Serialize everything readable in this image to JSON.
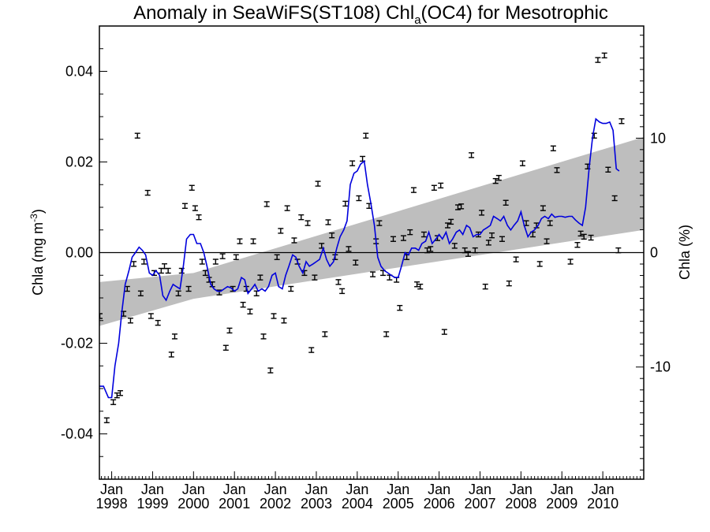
{
  "chart_data": {
    "type": "scatter",
    "title": "Anomaly in SeaWiFS(ST108) Chl",
    "title_subscript": "a",
    "title_suffix": "(OC4) for Mesotrophic",
    "ylabel_left": "Chla (mg m",
    "ylabel_left_sup": "-3",
    "ylabel_left_tail": ")",
    "ylabel_right": "Chla (%)",
    "xlim": [
      1997.7,
      2011.0
    ],
    "ylim": [
      -0.05,
      0.05
    ],
    "y_ticks": [
      "-0.04",
      "-0.02",
      "0.00",
      "0.02",
      "0.04"
    ],
    "y_tick_values": [
      -0.04,
      -0.02,
      0.0,
      0.02,
      0.04
    ],
    "right_ticks": [
      "-10",
      "0",
      "10"
    ],
    "right_tick_values": [
      -0.02525,
      0.0,
      0.02525
    ],
    "x_month": "Jan",
    "x_years": [
      "1998",
      "1999",
      "2000",
      "2001",
      "2002",
      "2003",
      "2004",
      "2005",
      "2006",
      "2007",
      "2008",
      "2009",
      "2010"
    ],
    "x_year_values": [
      1998,
      1999,
      2000,
      2001,
      2002,
      2003,
      2004,
      2005,
      2006,
      2007,
      2008,
      2009,
      2010
    ],
    "zero_line": 0.0,
    "colors": {
      "points": "#000000",
      "line": "#0000dd",
      "band": "#bebebe",
      "axis": "#000000"
    },
    "band": {
      "x": [
        1997.7,
        2000.0,
        2011.0
      ],
      "upper": [
        -0.0065,
        -0.0045,
        0.0255
      ],
      "lower": [
        -0.0162,
        -0.0102,
        0.005
      ]
    },
    "points": [
      [
        1997.71,
        -0.014
      ],
      [
        1997.88,
        -0.037
      ],
      [
        1998.04,
        -0.033
      ],
      [
        1998.13,
        -0.0315
      ],
      [
        1998.21,
        -0.031
      ],
      [
        1998.29,
        -0.0135
      ],
      [
        1998.38,
        -0.008
      ],
      [
        1998.46,
        -0.015
      ],
      [
        1998.54,
        -0.0025
      ],
      [
        1998.63,
        0.0258
      ],
      [
        1998.71,
        -0.009
      ],
      [
        1998.79,
        -0.002
      ],
      [
        1998.88,
        0.0132
      ],
      [
        1998.96,
        -0.014
      ],
      [
        1999.04,
        -0.0045
      ],
      [
        1999.13,
        -0.0155
      ],
      [
        1999.21,
        -0.004
      ],
      [
        1999.29,
        -0.003
      ],
      [
        1999.38,
        -0.004
      ],
      [
        1999.46,
        -0.0225
      ],
      [
        1999.54,
        -0.0185
      ],
      [
        1999.63,
        -0.009
      ],
      [
        1999.71,
        -0.004
      ],
      [
        1999.79,
        0.0103
      ],
      [
        1999.88,
        -0.008
      ],
      [
        1999.96,
        0.0143
      ],
      [
        2000.04,
        0.0098
      ],
      [
        2000.13,
        0.0078
      ],
      [
        2000.21,
        -0.002
      ],
      [
        2000.29,
        -0.0045
      ],
      [
        2000.38,
        -0.006
      ],
      [
        2000.46,
        -0.007
      ],
      [
        2000.54,
        -0.002
      ],
      [
        2000.63,
        -0.0088
      ],
      [
        2000.71,
        -0.0008
      ],
      [
        2000.79,
        -0.021
      ],
      [
        2000.88,
        -0.0172
      ],
      [
        2000.96,
        -0.008
      ],
      [
        2001.04,
        -0.001
      ],
      [
        2001.13,
        0.0025
      ],
      [
        2001.21,
        -0.0115
      ],
      [
        2001.29,
        -0.008
      ],
      [
        2001.38,
        -0.013
      ],
      [
        2001.46,
        0.0025
      ],
      [
        2001.54,
        -0.009
      ],
      [
        2001.63,
        -0.0055
      ],
      [
        2001.71,
        -0.0185
      ],
      [
        2001.79,
        0.0107
      ],
      [
        2001.88,
        -0.026
      ],
      [
        2001.96,
        -0.014
      ],
      [
        2002.04,
        -0.001
      ],
      [
        2002.13,
        0.0048
      ],
      [
        2002.21,
        -0.015
      ],
      [
        2002.29,
        0.0098
      ],
      [
        2002.38,
        -0.008
      ],
      [
        2002.46,
        0.0027
      ],
      [
        2002.54,
        -0.002
      ],
      [
        2002.63,
        0.0078
      ],
      [
        2002.71,
        -0.0045
      ],
      [
        2002.79,
        0.0065
      ],
      [
        2002.88,
        -0.0215
      ],
      [
        2002.96,
        -0.0055
      ],
      [
        2003.04,
        0.0152
      ],
      [
        2003.13,
        0.0015
      ],
      [
        2003.21,
        -0.018
      ],
      [
        2003.29,
        0.0067
      ],
      [
        2003.38,
        0.0038
      ],
      [
        2003.46,
        -0.001
      ],
      [
        2003.54,
        -0.0065
      ],
      [
        2003.63,
        -0.0085
      ],
      [
        2003.71,
        0.0108
      ],
      [
        2003.79,
        0.0008
      ],
      [
        2003.88,
        0.0197
      ],
      [
        2003.96,
        -0.0022
      ],
      [
        2004.04,
        0.012
      ],
      [
        2004.13,
        0.0207
      ],
      [
        2004.21,
        0.0258
      ],
      [
        2004.29,
        0.0103
      ],
      [
        2004.38,
        -0.0048
      ],
      [
        2004.46,
        0.0025
      ],
      [
        2004.54,
        0.0065
      ],
      [
        2004.63,
        -0.0045
      ],
      [
        2004.71,
        -0.018
      ],
      [
        2004.79,
        -0.0055
      ],
      [
        2004.88,
        0.003
      ],
      [
        2004.96,
        -0.006
      ],
      [
        2005.04,
        -0.0122
      ],
      [
        2005.13,
        0.0032
      ],
      [
        2005.21,
        -0.001
      ],
      [
        2005.29,
        0.0045
      ],
      [
        2005.38,
        0.0138
      ],
      [
        2005.46,
        -0.007
      ],
      [
        2005.54,
        -0.0075
      ],
      [
        2005.63,
        0.004
      ],
      [
        2005.71,
        0.0005
      ],
      [
        2005.79,
        0.0008
      ],
      [
        2005.88,
        0.0143
      ],
      [
        2005.96,
        0.0032
      ],
      [
        2006.04,
        0.0148
      ],
      [
        2006.13,
        -0.0175
      ],
      [
        2006.21,
        0.006
      ],
      [
        2006.29,
        0.0068
      ],
      [
        2006.38,
        0.0015
      ],
      [
        2006.46,
        0.01
      ],
      [
        2006.54,
        0.0102
      ],
      [
        2006.63,
        0.0005
      ],
      [
        2006.71,
        -0.0003
      ],
      [
        2006.79,
        0.0215
      ],
      [
        2006.88,
        0.0005
      ],
      [
        2006.96,
        0.004
      ],
      [
        2007.04,
        0.0088
      ],
      [
        2007.13,
        -0.0075
      ],
      [
        2007.21,
        0.0022
      ],
      [
        2007.29,
        0.0038
      ],
      [
        2007.38,
        0.0158
      ],
      [
        2007.46,
        0.0165
      ],
      [
        2007.54,
        0.003
      ],
      [
        2007.63,
        0.011
      ],
      [
        2007.71,
        -0.0068
      ],
      [
        2007.88,
        -0.0015
      ],
      [
        2008.04,
        0.0197
      ],
      [
        2008.13,
        0.0065
      ],
      [
        2008.29,
        0.004
      ],
      [
        2008.38,
        0.006
      ],
      [
        2008.46,
        -0.0025
      ],
      [
        2008.54,
        0.0098
      ],
      [
        2008.63,
        0.0025
      ],
      [
        2008.71,
        0.0065
      ],
      [
        2008.79,
        0.023
      ],
      [
        2008.88,
        0.0182
      ],
      [
        2009.21,
        -0.002
      ],
      [
        2009.38,
        0.0017
      ],
      [
        2009.46,
        0.0042
      ],
      [
        2009.54,
        0.0035
      ],
      [
        2009.63,
        0.019
      ],
      [
        2009.71,
        0.0033
      ],
      [
        2009.79,
        0.0258
      ],
      [
        2009.88,
        0.0425
      ],
      [
        2010.04,
        0.0435
      ],
      [
        2010.13,
        0.0183
      ],
      [
        2010.29,
        0.012
      ],
      [
        2010.38,
        0.0005
      ],
      [
        2010.46,
        0.029
      ]
    ],
    "line": [
      [
        1997.7,
        -0.0295
      ],
      [
        1997.8,
        -0.0295
      ],
      [
        1997.92,
        -0.032
      ],
      [
        1998.0,
        -0.032
      ],
      [
        1998.08,
        -0.025
      ],
      [
        1998.17,
        -0.02
      ],
      [
        1998.25,
        -0.013
      ],
      [
        1998.33,
        -0.007
      ],
      [
        1998.42,
        -0.004
      ],
      [
        1998.5,
        -0.001
      ],
      [
        1998.58,
        0.0
      ],
      [
        1998.67,
        0.0012
      ],
      [
        1998.75,
        0.0005
      ],
      [
        1998.83,
        -0.0005
      ],
      [
        1998.92,
        -0.0045
      ],
      [
        1999.0,
        -0.005
      ],
      [
        1999.08,
        -0.004
      ],
      [
        1999.17,
        -0.005
      ],
      [
        1999.25,
        -0.0095
      ],
      [
        1999.33,
        -0.0105
      ],
      [
        1999.42,
        -0.0085
      ],
      [
        1999.5,
        -0.007
      ],
      [
        1999.58,
        -0.0075
      ],
      [
        1999.67,
        -0.008
      ],
      [
        1999.75,
        -0.003
      ],
      [
        1999.83,
        0.003
      ],
      [
        1999.92,
        0.004
      ],
      [
        2000.0,
        0.004
      ],
      [
        2000.08,
        0.002
      ],
      [
        2000.17,
        0.002
      ],
      [
        2000.25,
        0.0
      ],
      [
        2000.33,
        -0.003
      ],
      [
        2000.42,
        -0.007
      ],
      [
        2000.5,
        -0.008
      ],
      [
        2000.58,
        -0.0085
      ],
      [
        2000.67,
        -0.0085
      ],
      [
        2000.75,
        -0.008
      ],
      [
        2000.83,
        -0.0075
      ],
      [
        2000.92,
        -0.0078
      ],
      [
        2001.0,
        -0.0085
      ],
      [
        2001.08,
        -0.008
      ],
      [
        2001.17,
        -0.0055
      ],
      [
        2001.25,
        -0.006
      ],
      [
        2001.33,
        -0.009
      ],
      [
        2001.42,
        -0.008
      ],
      [
        2001.5,
        -0.007
      ],
      [
        2001.58,
        -0.0085
      ],
      [
        2001.67,
        -0.008
      ],
      [
        2001.75,
        -0.0085
      ],
      [
        2001.83,
        -0.0075
      ],
      [
        2001.92,
        -0.005
      ],
      [
        2002.0,
        -0.0045
      ],
      [
        2002.08,
        -0.0075
      ],
      [
        2002.17,
        -0.008
      ],
      [
        2002.25,
        -0.005
      ],
      [
        2002.33,
        -0.003
      ],
      [
        2002.42,
        -0.0005
      ],
      [
        2002.5,
        -0.001
      ],
      [
        2002.58,
        -0.003
      ],
      [
        2002.67,
        -0.0045
      ],
      [
        2002.75,
        -0.002
      ],
      [
        2002.83,
        -0.003
      ],
      [
        2002.92,
        -0.0025
      ],
      [
        2003.0,
        -0.002
      ],
      [
        2003.08,
        -0.0015
      ],
      [
        2003.17,
        0.001
      ],
      [
        2003.25,
        -0.0015
      ],
      [
        2003.33,
        -0.003
      ],
      [
        2003.42,
        -0.002
      ],
      [
        2003.5,
        0.001
      ],
      [
        2003.58,
        0.0035
      ],
      [
        2003.67,
        0.005
      ],
      [
        2003.75,
        0.007
      ],
      [
        2003.83,
        0.015
      ],
      [
        2003.92,
        0.0175
      ],
      [
        2004.0,
        0.018
      ],
      [
        2004.08,
        0.0195
      ],
      [
        2004.17,
        0.0202
      ],
      [
        2004.25,
        0.015
      ],
      [
        2004.33,
        0.011
      ],
      [
        2004.42,
        0.006
      ],
      [
        2004.5,
        -0.001
      ],
      [
        2004.58,
        -0.003
      ],
      [
        2004.67,
        -0.004
      ],
      [
        2004.75,
        -0.0045
      ],
      [
        2004.83,
        -0.005
      ],
      [
        2004.92,
        -0.0055
      ],
      [
        2005.0,
        -0.0055
      ],
      [
        2005.08,
        -0.003
      ],
      [
        2005.17,
        0.0
      ],
      [
        2005.25,
        -0.0005
      ],
      [
        2005.33,
        0.001
      ],
      [
        2005.42,
        0.001
      ],
      [
        2005.5,
        0.0005
      ],
      [
        2005.58,
        0.002
      ],
      [
        2005.67,
        0.0025
      ],
      [
        2005.75,
        0.0045
      ],
      [
        2005.83,
        0.002
      ],
      [
        2005.92,
        0.003
      ],
      [
        2006.0,
        0.004
      ],
      [
        2006.08,
        0.003
      ],
      [
        2006.17,
        0.0045
      ],
      [
        2006.25,
        0.002
      ],
      [
        2006.33,
        0.003
      ],
      [
        2006.42,
        0.0045
      ],
      [
        2006.5,
        0.005
      ],
      [
        2006.58,
        0.004
      ],
      [
        2006.67,
        0.006
      ],
      [
        2006.75,
        0.0055
      ],
      [
        2006.83,
        0.0035
      ],
      [
        2006.92,
        0.004
      ],
      [
        2007.0,
        0.004
      ],
      [
        2007.08,
        0.005
      ],
      [
        2007.17,
        0.0055
      ],
      [
        2007.25,
        0.006
      ],
      [
        2007.33,
        0.008
      ],
      [
        2007.42,
        0.0075
      ],
      [
        2007.5,
        0.007
      ],
      [
        2007.58,
        0.008
      ],
      [
        2007.67,
        0.006
      ],
      [
        2007.75,
        0.005
      ],
      [
        2007.83,
        0.006
      ],
      [
        2007.92,
        0.007
      ],
      [
        2008.0,
        0.009
      ],
      [
        2008.08,
        0.006
      ],
      [
        2008.17,
        0.0035
      ],
      [
        2008.25,
        0.0045
      ],
      [
        2008.33,
        0.005
      ],
      [
        2008.42,
        0.006
      ],
      [
        2008.5,
        0.0075
      ],
      [
        2008.58,
        0.008
      ],
      [
        2008.67,
        0.0075
      ],
      [
        2008.75,
        0.0085
      ],
      [
        2008.83,
        0.0078
      ],
      [
        2008.92,
        0.008
      ],
      [
        2009.0,
        0.008
      ],
      [
        2009.08,
        0.0078
      ],
      [
        2009.17,
        0.008
      ],
      [
        2009.25,
        0.008
      ],
      [
        2009.33,
        0.0072
      ],
      [
        2009.42,
        0.0065
      ],
      [
        2009.5,
        0.006
      ],
      [
        2009.58,
        0.01
      ],
      [
        2009.67,
        0.019
      ],
      [
        2009.75,
        0.0255
      ],
      [
        2009.83,
        0.0295
      ],
      [
        2009.92,
        0.0288
      ],
      [
        2010.0,
        0.0285
      ],
      [
        2010.08,
        0.0285
      ],
      [
        2010.17,
        0.0288
      ],
      [
        2010.25,
        0.027
      ],
      [
        2010.33,
        0.0185
      ],
      [
        2010.4,
        0.018
      ]
    ]
  }
}
